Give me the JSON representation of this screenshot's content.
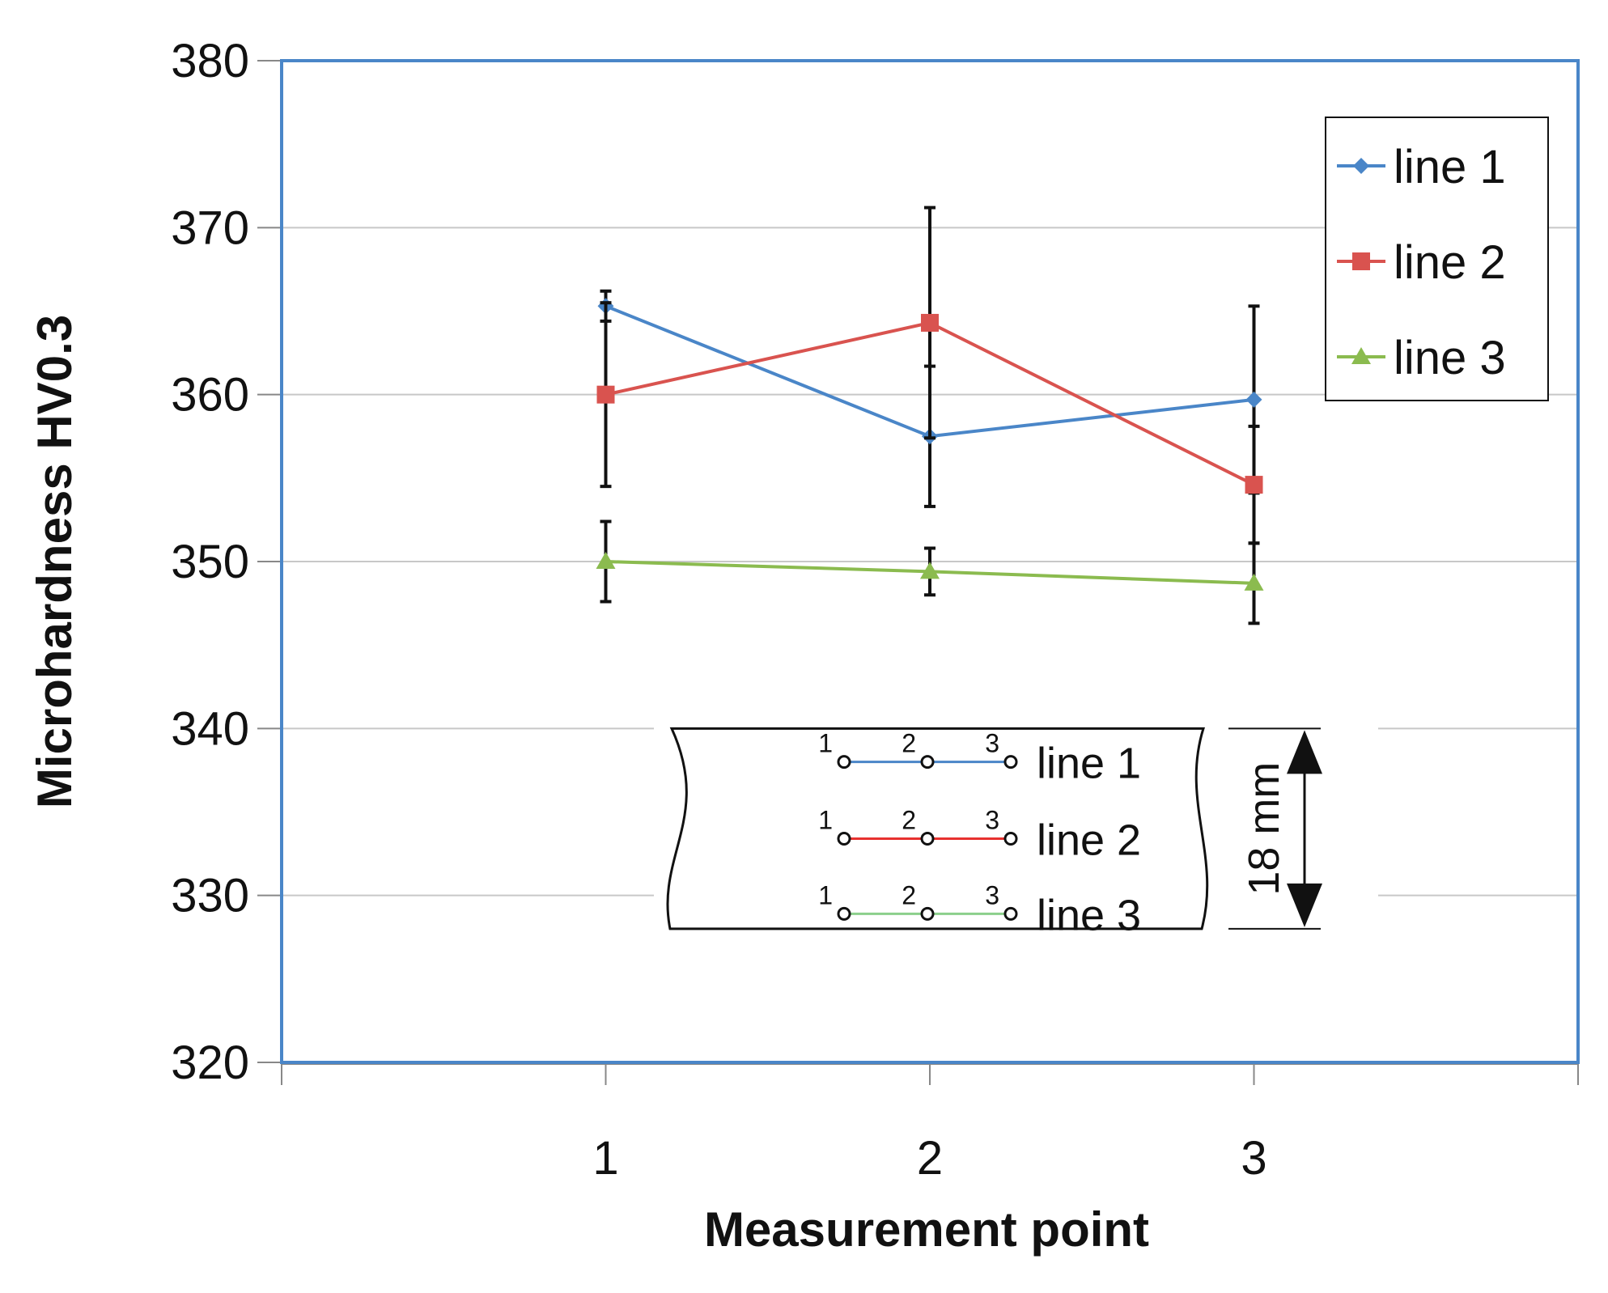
{
  "chart_data": {
    "type": "line",
    "title": "",
    "xlabel": "Measurement point",
    "ylabel": "Microhardness HV0.3",
    "categories": [
      "1",
      "2",
      "3"
    ],
    "ylim": [
      320,
      380
    ],
    "yticks": [
      "320",
      "330",
      "340",
      "350",
      "360",
      "370",
      "380"
    ],
    "grid": true,
    "legend_position": "top-right",
    "series": [
      {
        "name": "line 1",
        "color": "#4a86c8",
        "marker": "diamond",
        "values": [
          365.3,
          357.5,
          359.7
        ],
        "errors": [
          0.9,
          4.2,
          5.6
        ]
      },
      {
        "name": "line 2",
        "color": "#d9534f",
        "marker": "square",
        "values": [
          360.0,
          364.3,
          354.6
        ],
        "errors": [
          5.5,
          6.9,
          3.5
        ]
      },
      {
        "name": "line 3",
        "color": "#8bbb4f",
        "marker": "triangle",
        "values": [
          350.0,
          349.4,
          348.7
        ],
        "errors": [
          2.4,
          1.4,
          2.4
        ]
      }
    ],
    "annotations": {
      "inset_lines": [
        {
          "label": "line 1",
          "points": [
            "1",
            "2",
            "3"
          ],
          "color": "#4a86c8"
        },
        {
          "label": "line 2",
          "points": [
            "1",
            "2",
            "3"
          ],
          "color": "#e8312f"
        },
        {
          "label": "line 3",
          "points": [
            "1",
            "2",
            "3"
          ],
          "color": "#8bcf8b"
        }
      ],
      "dimension": "18 mm"
    }
  }
}
